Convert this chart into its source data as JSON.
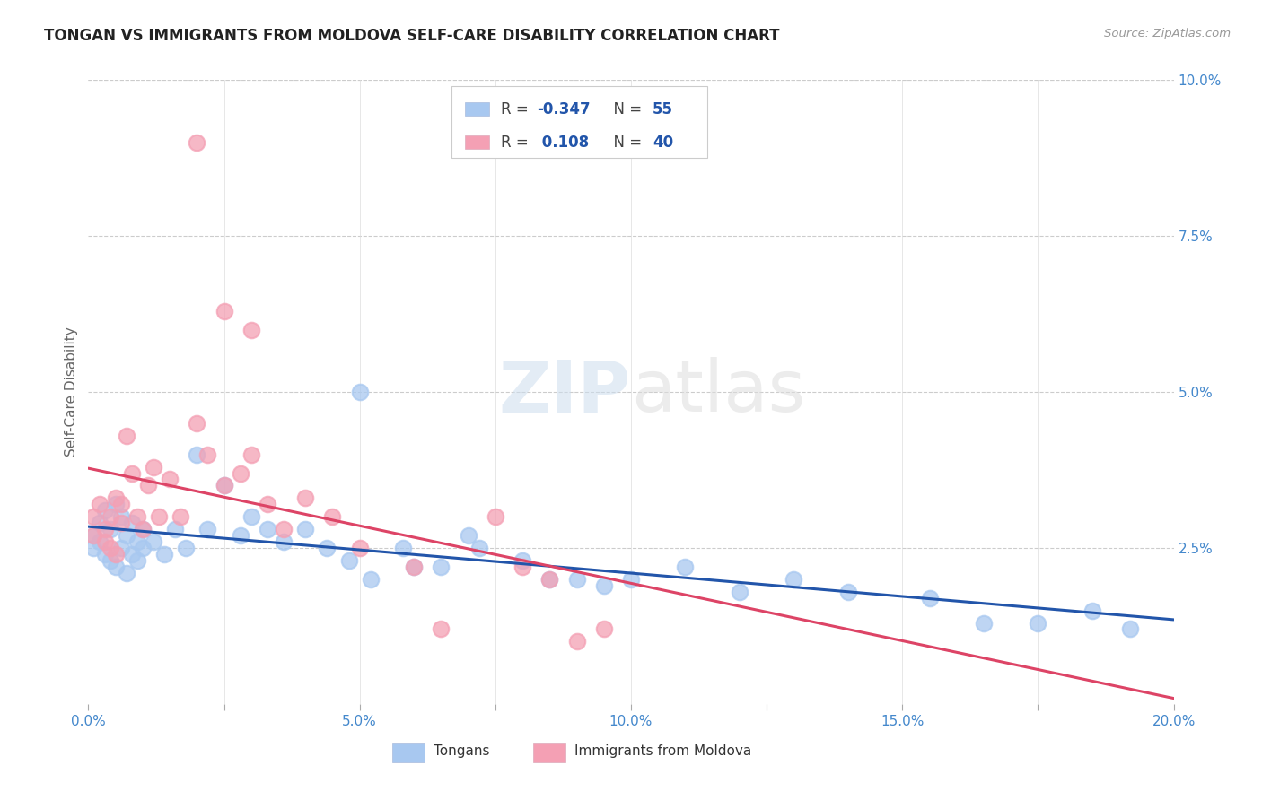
{
  "title": "TONGAN VS IMMIGRANTS FROM MOLDOVA SELF-CARE DISABILITY CORRELATION CHART",
  "source": "Source: ZipAtlas.com",
  "ylabel_label": "Self-Care Disability",
  "xlim": [
    0,
    0.2
  ],
  "ylim": [
    0,
    0.1
  ],
  "xticks": [
    0.0,
    0.025,
    0.05,
    0.075,
    0.1,
    0.125,
    0.15,
    0.175,
    0.2
  ],
  "xticklabels": [
    "0.0%",
    "",
    "5.0%",
    "",
    "10.0%",
    "",
    "15.0%",
    "",
    "20.0%"
  ],
  "yticks_right": [
    0.0,
    0.025,
    0.05,
    0.075,
    0.1
  ],
  "yticklabels_right": [
    "",
    "2.5%",
    "5.0%",
    "7.5%",
    "10.0%"
  ],
  "tongan_R": -0.347,
  "tongan_N": 55,
  "moldova_R": 0.108,
  "moldova_N": 40,
  "tongan_color": "#A8C8F0",
  "moldova_color": "#F4A0B4",
  "tongan_line_color": "#2255AA",
  "moldova_line_color": "#DD4466",
  "background_color": "#ffffff",
  "watermark_zip": "ZIP",
  "watermark_atlas": "atlas",
  "tongan_x": [
    0.001,
    0.001,
    0.002,
    0.002,
    0.003,
    0.003,
    0.004,
    0.004,
    0.005,
    0.005,
    0.006,
    0.006,
    0.007,
    0.007,
    0.008,
    0.008,
    0.009,
    0.009,
    0.01,
    0.01,
    0.012,
    0.014,
    0.016,
    0.018,
    0.02,
    0.022,
    0.025,
    0.028,
    0.03,
    0.033,
    0.036,
    0.04,
    0.044,
    0.048,
    0.052,
    0.058,
    0.065,
    0.072,
    0.08,
    0.09,
    0.1,
    0.11,
    0.12,
    0.13,
    0.14,
    0.155,
    0.165,
    0.175,
    0.185,
    0.192,
    0.05,
    0.06,
    0.07,
    0.085,
    0.095
  ],
  "tongan_y": [
    0.027,
    0.025,
    0.029,
    0.026,
    0.031,
    0.024,
    0.028,
    0.023,
    0.032,
    0.022,
    0.03,
    0.025,
    0.027,
    0.021,
    0.029,
    0.024,
    0.026,
    0.023,
    0.028,
    0.025,
    0.026,
    0.024,
    0.028,
    0.025,
    0.04,
    0.028,
    0.035,
    0.027,
    0.03,
    0.028,
    0.026,
    0.028,
    0.025,
    0.023,
    0.02,
    0.025,
    0.022,
    0.025,
    0.023,
    0.02,
    0.02,
    0.022,
    0.018,
    0.02,
    0.018,
    0.017,
    0.013,
    0.013,
    0.015,
    0.012,
    0.05,
    0.022,
    0.027,
    0.02,
    0.019
  ],
  "moldova_x": [
    0.001,
    0.001,
    0.002,
    0.003,
    0.003,
    0.004,
    0.004,
    0.005,
    0.005,
    0.006,
    0.006,
    0.007,
    0.008,
    0.009,
    0.01,
    0.011,
    0.012,
    0.013,
    0.015,
    0.017,
    0.02,
    0.022,
    0.025,
    0.028,
    0.03,
    0.033,
    0.036,
    0.04,
    0.045,
    0.05,
    0.02,
    0.025,
    0.03,
    0.06,
    0.065,
    0.075,
    0.08,
    0.085,
    0.09,
    0.095
  ],
  "moldova_y": [
    0.03,
    0.027,
    0.032,
    0.028,
    0.026,
    0.03,
    0.025,
    0.033,
    0.024,
    0.029,
    0.032,
    0.043,
    0.037,
    0.03,
    0.028,
    0.035,
    0.038,
    0.03,
    0.036,
    0.03,
    0.045,
    0.04,
    0.035,
    0.037,
    0.04,
    0.032,
    0.028,
    0.033,
    0.03,
    0.025,
    0.09,
    0.063,
    0.06,
    0.022,
    0.012,
    0.03,
    0.022,
    0.02,
    0.01,
    0.012
  ]
}
